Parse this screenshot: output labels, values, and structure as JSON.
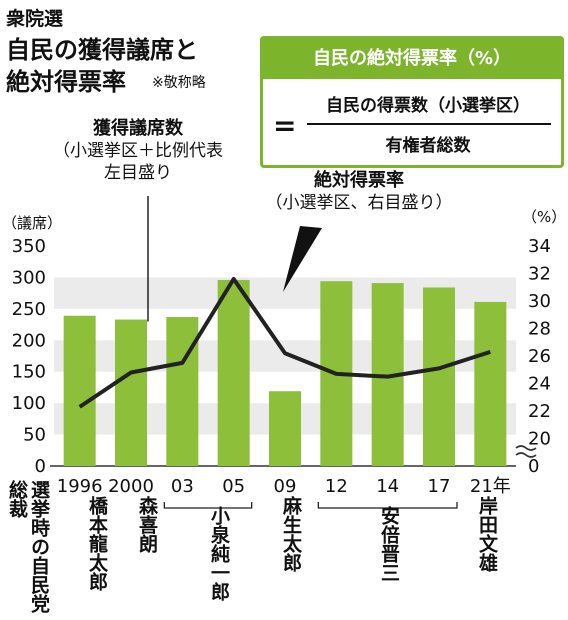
{
  "header": {
    "kicker": "衆院選",
    "title_line1": "自民の獲得議席と",
    "title_line2": "絶対得票率",
    "note": "※敬称略"
  },
  "formula": {
    "head": "自民の絶対得票率（%）",
    "equals": "=",
    "numerator": "自民の得票数（小選挙区）",
    "denominator": "有権者総数"
  },
  "annotations": {
    "seats": {
      "title": "獲得議席数",
      "line2": "（小選挙区＋比例代表",
      "line3": "左目盛り"
    },
    "rate": {
      "title": "絶対得票率",
      "line2": "（小選挙区、右目盛り）"
    }
  },
  "axes": {
    "left_unit": "（議席）",
    "right_unit": "（%）"
  },
  "leaders_label": "選挙時の自民党総裁",
  "prime_ministers": [
    {
      "name": "橋本龍太郎"
    },
    {
      "name": "森喜朗"
    },
    {
      "name": "小泉純一郎"
    },
    {
      "name": "麻生太郎"
    },
    {
      "name": "安倍晋三"
    },
    {
      "name": "岸田文雄"
    }
  ],
  "chart_data": {
    "type": "bar",
    "categories": [
      "1996",
      "2000",
      "03",
      "05",
      "09",
      "12",
      "14",
      "17",
      "21年"
    ],
    "series": [
      {
        "name": "獲得議席数",
        "type": "bar",
        "axis": "left",
        "values": [
          239,
          233,
          237,
          296,
          119,
          294,
          291,
          284,
          261
        ],
        "color": "#8dbf3a"
      },
      {
        "name": "絶対得票率",
        "type": "line",
        "axis": "right",
        "values": [
          22.3,
          24.8,
          25.5,
          31.6,
          26.2,
          24.7,
          24.5,
          25.1,
          26.3
        ],
        "color": "#222222"
      }
    ],
    "left_axis": {
      "min": 0,
      "max": 350,
      "ticks": [
        0,
        50,
        100,
        150,
        200,
        250,
        300,
        350
      ]
    },
    "right_axis": {
      "min": 18,
      "max": 34,
      "ticks": [
        0,
        20,
        22,
        24,
        26,
        28,
        30,
        32,
        34
      ],
      "broken": true
    }
  }
}
